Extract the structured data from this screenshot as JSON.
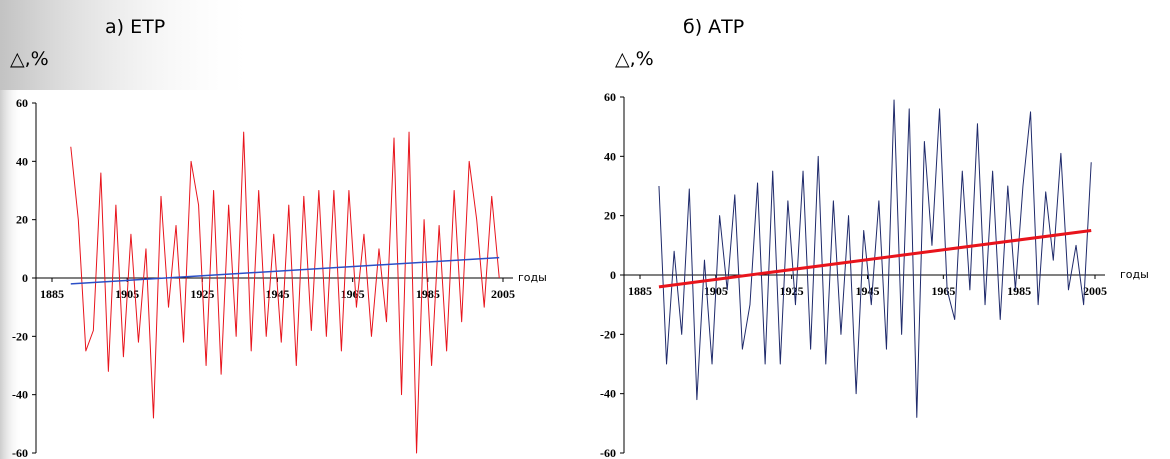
{
  "chart_data": [
    {
      "type": "line",
      "title": "а) ЕТР",
      "y_label": "△,%",
      "x_label": "годы",
      "x": [
        1890,
        1892,
        1894,
        1896,
        1898,
        1900,
        1902,
        1904,
        1906,
        1908,
        1910,
        1912,
        1914,
        1916,
        1918,
        1920,
        1922,
        1924,
        1926,
        1928,
        1930,
        1932,
        1934,
        1936,
        1938,
        1940,
        1942,
        1944,
        1946,
        1948,
        1950,
        1952,
        1954,
        1956,
        1958,
        1960,
        1962,
        1964,
        1966,
        1968,
        1970,
        1972,
        1974,
        1976,
        1978,
        1980,
        1982,
        1984,
        1986,
        1988,
        1990,
        1992,
        1994,
        1996,
        1998,
        2000,
        2002,
        2004
      ],
      "series": [
        {
          "color": "#e8141c",
          "values": [
            45,
            20,
            -25,
            -18,
            36,
            -32,
            25,
            -27,
            15,
            -22,
            10,
            -48,
            28,
            -10,
            18,
            -22,
            40,
            25,
            -30,
            30,
            -33,
            25,
            -20,
            50,
            -25,
            30,
            -20,
            15,
            -22,
            25,
            -30,
            28,
            -18,
            30,
            -20,
            30,
            -25,
            30,
            -10,
            15,
            -20,
            10,
            -15,
            48,
            -40,
            50,
            -60,
            20,
            -30,
            18,
            -25,
            30,
            -15,
            40,
            20,
            -10,
            28,
            0
          ]
        },
        {
          "color": "#2b4fc7",
          "x": [
            1890,
            2004
          ],
          "values": [
            -2,
            7
          ]
        }
      ],
      "xlim": [
        1885,
        2005
      ],
      "xticks": [
        1885,
        1905,
        1925,
        1945,
        1965,
        1985,
        2005
      ],
      "ylim": [
        -60,
        60
      ],
      "yticks": [
        -60,
        -40,
        -20,
        0,
        20,
        40,
        60
      ]
    },
    {
      "type": "line",
      "title": "б) АТР",
      "y_label": "△,%",
      "x_label": "годы",
      "x": [
        1890,
        1892,
        1894,
        1896,
        1898,
        1900,
        1902,
        1904,
        1906,
        1908,
        1910,
        1912,
        1914,
        1916,
        1918,
        1920,
        1922,
        1924,
        1926,
        1928,
        1930,
        1932,
        1934,
        1936,
        1938,
        1940,
        1942,
        1944,
        1946,
        1948,
        1950,
        1952,
        1954,
        1956,
        1958,
        1960,
        1962,
        1964,
        1966,
        1968,
        1970,
        1972,
        1974,
        1976,
        1978,
        1980,
        1982,
        1984,
        1986,
        1988,
        1990,
        1992,
        1994,
        1996,
        1998,
        2000,
        2002,
        2004
      ],
      "series": [
        {
          "color": "#1f2a6b",
          "values": [
            30,
            -30,
            8,
            -20,
            29,
            -42,
            5,
            -30,
            20,
            -5,
            27,
            -25,
            -10,
            31,
            -30,
            35,
            -30,
            25,
            -10,
            35,
            -25,
            40,
            -30,
            25,
            -20,
            20,
            -40,
            15,
            -10,
            25,
            -25,
            59,
            -20,
            56,
            -48,
            45,
            10,
            56,
            -5,
            -15,
            35,
            -5,
            51,
            -10,
            35,
            -15,
            30,
            -5,
            30,
            55,
            -10,
            28,
            5,
            41,
            -5,
            10,
            -10,
            38
          ]
        },
        {
          "color": "#e8141c",
          "x": [
            1890,
            2004
          ],
          "values": [
            -4,
            15
          ]
        }
      ],
      "xlim": [
        1885,
        2005
      ],
      "xticks": [
        1885,
        1905,
        1925,
        1945,
        1965,
        1985,
        2005
      ],
      "ylim": [
        -60,
        60
      ],
      "yticks": [
        -60,
        -40,
        -20,
        0,
        20,
        40,
        60
      ]
    }
  ]
}
